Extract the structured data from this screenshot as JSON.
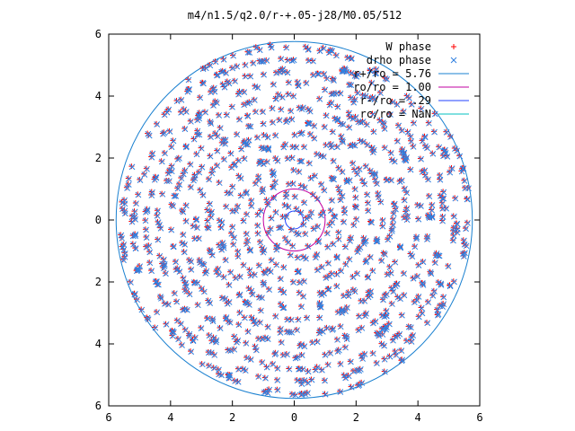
{
  "chart_data": {
    "type": "scatter",
    "title": "m4/n1.5/q2.0/r-+.05-j28/M0.05/512",
    "xlim": [
      -6,
      6
    ],
    "ylim": [
      -6,
      6
    ],
    "x_tick_labels": [
      "6",
      "4",
      "2",
      "0",
      "2",
      "4",
      "6"
    ],
    "y_tick_labels": [
      "6",
      "4",
      "2",
      "0",
      "2",
      "4",
      "6"
    ],
    "grid": false,
    "legend_position": "top-right",
    "series": [
      {
        "name": "W phase",
        "kind": "points",
        "marker": "plus",
        "color": "#ff0000",
        "arms": 4,
        "pitch_turns": 3.6,
        "r_min": 0.3,
        "r_max": 5.76
      },
      {
        "name": "drho phase",
        "kind": "points",
        "marker": "x",
        "color": "#3080e0",
        "arms": 4,
        "pitch_turns": 3.6,
        "r_min": 0.3,
        "r_max": 5.76
      },
      {
        "name": "r+/ro = 5.76",
        "kind": "circle",
        "radius": 5.76,
        "color": "#1a80d0"
      },
      {
        "name": "ro/ro = 1.00",
        "kind": "circle",
        "radius": 1.0,
        "color": "#c000a0"
      },
      {
        "name": "r-/ro = .29",
        "kind": "circle",
        "radius": 0.29,
        "color": "#2040ff"
      },
      {
        "name": "rc/ro = NaN",
        "kind": "circle",
        "radius": null,
        "color": "#00c0c0"
      }
    ]
  }
}
